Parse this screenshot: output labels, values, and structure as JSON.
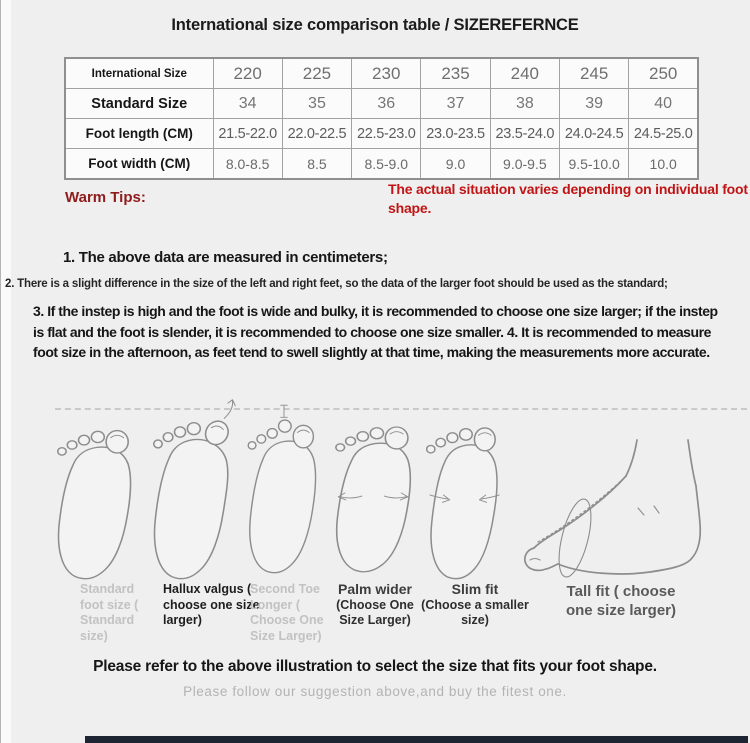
{
  "header": {
    "title": "International size comparison table / SIZEREFERNCE"
  },
  "size_table": {
    "rows": [
      {
        "label": "International Size",
        "values": [
          "220",
          "225",
          "230",
          "235",
          "240",
          "245",
          "250"
        ]
      },
      {
        "label": "Standard Size",
        "values": [
          "34",
          "35",
          "36",
          "37",
          "38",
          "39",
          "40"
        ]
      },
      {
        "label": "Foot length (CM)",
        "values": [
          "21.5-22.0",
          "22.0-22.5",
          "22.5-23.0",
          "23.0-23.5",
          "23.5-24.0",
          "24.0-24.5",
          "24.5-25.0"
        ]
      },
      {
        "label": "Foot width (CM)",
        "values": [
          "8.0-8.5",
          "8.5",
          "8.5-9.0",
          "9.0",
          "9.0-9.5",
          "9.5-10.0",
          "10.0"
        ]
      }
    ]
  },
  "warm_tips": {
    "heading": "Warm Tips:",
    "alert": "The actual situation varies depending on individual foot shape.",
    "tip1": "1. The above data are measured in centimeters;",
    "tip2": "2. There is a slight difference in the size of the left and right feet, so the data of the larger foot should be used as the standard;",
    "tip3": "3. If the instep is high and the foot is wide and bulky, it is recommended to choose one size larger; if the instep is flat and the foot is slender, it is recommended to choose one size smaller. 4. It is recommended to measure foot size in the afternoon, as feet tend to swell slightly at that time, making the measurements more accurate."
  },
  "foot_guide": {
    "items": [
      {
        "name": "standard-foot",
        "label": "Standard foot size ( Standard size)"
      },
      {
        "name": "hallux-valgus",
        "label": "Hallux valgus ( choose one size larger)"
      },
      {
        "name": "second-toe-longer",
        "label": "Second Toe Longer ( Choose One Size Larger)"
      },
      {
        "name": "palm-wider",
        "title": "Palm wider",
        "sub": "(Choose One Size Larger)"
      },
      {
        "name": "slim-fit",
        "title": "Slim fit",
        "sub": "(Choose a smaller size)"
      },
      {
        "name": "tall-fit",
        "label": "Tall fit ( choose one size larger)"
      }
    ]
  },
  "footer": {
    "line1": "Please refer to the above illustration to select the size that fits your foot shape.",
    "line2": "Please follow our suggestion above,and buy the fitest one."
  },
  "colors": {
    "background": "#efeff0",
    "warm_tips_red": "#8e1c1c",
    "alert_red": "#c11414",
    "bottom_bar": "#1d2533"
  }
}
